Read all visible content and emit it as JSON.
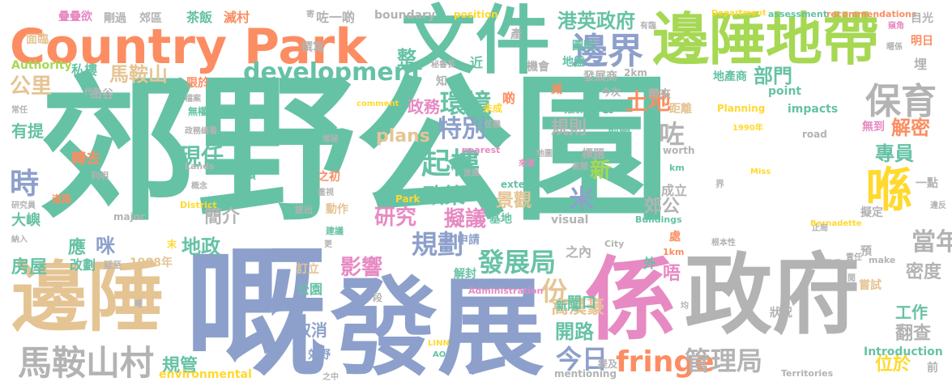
{
  "palette": {
    "teal": "#66c2a5",
    "orange": "#fc8d62",
    "blue": "#8da0cb",
    "pink": "#e78ac3",
    "green": "#a6d854",
    "yellow": "#ffd92f",
    "tan": "#e5c494",
    "gray": "#b3b3b3"
  },
  "words": [
    {
      "text": "郊野公園",
      "color": "teal"
    },
    {
      "text": "嘅",
      "color": "blue"
    },
    {
      "text": "發展",
      "color": "blue"
    },
    {
      "text": "係",
      "color": "pink"
    },
    {
      "text": "政府",
      "color": "gray"
    },
    {
      "text": "文件",
      "color": "teal"
    },
    {
      "text": "Country Park",
      "color": "orange"
    },
    {
      "text": "邊陲地帶",
      "color": "green"
    },
    {
      "text": "邊陲",
      "color": "tan"
    },
    {
      "text": "馬鞍山村",
      "color": "gray"
    },
    {
      "text": "保育",
      "color": "gray"
    },
    {
      "text": "喺",
      "color": "yellow"
    },
    {
      "text": "邊界",
      "color": "blue"
    },
    {
      "text": "development",
      "color": "teal"
    },
    {
      "text": "港英政府",
      "color": "teal"
    },
    {
      "text": "馬鞍山",
      "color": "tan"
    },
    {
      "text": "公里",
      "color": "tan"
    },
    {
      "text": "規劃",
      "color": "blue"
    },
    {
      "text": "起樓",
      "color": "teal"
    },
    {
      "text": "環境",
      "color": "teal"
    },
    {
      "text": "特別",
      "color": "blue"
    },
    {
      "text": "研究",
      "color": "pink"
    },
    {
      "text": "擬議",
      "color": "pink"
    },
    {
      "text": "fringe",
      "color": "orange"
    },
    {
      "text": "管理局",
      "color": "gray"
    },
    {
      "text": "發展局",
      "color": "teal"
    },
    {
      "text": "今日",
      "color": "blue"
    },
    {
      "text": "開路",
      "color": "teal"
    },
    {
      "text": "當年",
      "color": "gray"
    },
    {
      "text": "專員",
      "color": "teal"
    },
    {
      "text": "解密",
      "color": "orange"
    },
    {
      "text": "部門",
      "color": "teal"
    },
    {
      "text": "土地",
      "color": "orange"
    },
    {
      "text": "時",
      "color": "blue"
    },
    {
      "text": "咗",
      "color": "gray"
    },
    {
      "text": "現任",
      "color": "teal"
    },
    {
      "text": "政策",
      "color": "teal"
    },
    {
      "text": "景觀",
      "color": "tan"
    },
    {
      "text": "規則",
      "color": "gray"
    },
    {
      "text": "份",
      "color": "tan"
    },
    {
      "text": "米",
      "color": "blue"
    },
    {
      "text": "新",
      "color": "green"
    },
    {
      "text": "影響",
      "color": "pink"
    },
    {
      "text": "地政",
      "color": "teal"
    },
    {
      "text": "咪",
      "color": "blue"
    },
    {
      "text": "房屋",
      "color": "teal"
    },
    {
      "text": "簡介",
      "color": "gray"
    },
    {
      "text": "plans",
      "color": "tan"
    },
    {
      "text": "政務",
      "color": "pink"
    },
    {
      "text": "整",
      "color": "teal"
    },
    {
      "text": "a",
      "color": "teal"
    },
    {
      "text": "密度",
      "color": "gray"
    },
    {
      "text": "工作",
      "color": "teal"
    },
    {
      "text": "翻查",
      "color": "gray"
    },
    {
      "text": "位於",
      "color": "yellow"
    },
    {
      "text": "規管",
      "color": "teal"
    },
    {
      "text": "取消",
      "color": "blue"
    },
    {
      "text": "窩漢豪",
      "color": "tan"
    },
    {
      "text": "門口",
      "color": "teal"
    },
    {
      "text": "郊公",
      "color": "gray"
    },
    {
      "text": "應",
      "color": "teal"
    },
    {
      "text": "大嶼",
      "color": "teal"
    },
    {
      "text": "改劃",
      "color": "teal"
    },
    {
      "text": "有提",
      "color": "teal"
    },
    {
      "text": "轉去",
      "color": "orange"
    },
    {
      "text": "Authority",
      "color": "green"
    },
    {
      "text": "私樓",
      "color": "teal"
    },
    {
      "text": "面臨",
      "color": "tan"
    },
    {
      "text": "疊疊欲",
      "color": "pink"
    },
    {
      "text": "剛過",
      "color": "gray"
    },
    {
      "text": "郊區",
      "color": "gray"
    },
    {
      "text": "茶飯",
      "color": "teal"
    },
    {
      "text": "滅村",
      "color": "orange"
    },
    {
      "text": "咗一啲",
      "color": "gray"
    },
    {
      "text": "boundary",
      "color": "gray"
    },
    {
      "text": "position",
      "color": "yellow"
    },
    {
      "text": "Department",
      "color": "yellow"
    },
    {
      "text": "assessment",
      "color": "teal"
    },
    {
      "text": "recommendations",
      "color": "orange"
    },
    {
      "text": "目光",
      "color": "gray"
    },
    {
      "text": "明日",
      "color": "orange"
    },
    {
      "text": "地產商",
      "color": "teal"
    },
    {
      "text": "point",
      "color": "teal"
    },
    {
      "text": "發展商",
      "color": "gray"
    },
    {
      "text": "地盤",
      "color": "teal"
    },
    {
      "text": "圖則",
      "color": "teal"
    },
    {
      "text": "近",
      "color": "teal"
    },
    {
      "text": "機會",
      "color": "gray"
    },
    {
      "text": "產",
      "color": "gray"
    },
    {
      "text": "2km",
      "color": "gray"
    },
    {
      "text": "帶來",
      "color": "gray"
    },
    {
      "text": "距離",
      "color": "tan"
    },
    {
      "text": "impacts",
      "color": "teal"
    },
    {
      "text": "Planning",
      "color": "yellow"
    },
    {
      "text": "road",
      "color": "gray"
    },
    {
      "text": "無到",
      "color": "pink"
    },
    {
      "text": "埋",
      "color": "gray"
    },
    {
      "text": "一點",
      "color": "gray"
    },
    {
      "text": "擬定",
      "color": "gray"
    },
    {
      "text": "界",
      "color": "gray"
    },
    {
      "text": "成立",
      "color": "gray"
    },
    {
      "text": "Buildings",
      "color": "teal"
    },
    {
      "text": "visual",
      "color": "gray"
    },
    {
      "text": "extended",
      "color": "teal"
    },
    {
      "text": "Park",
      "color": "yellow"
    },
    {
      "text": "基地",
      "color": "teal"
    },
    {
      "text": "申請",
      "color": "blue"
    },
    {
      "text": "之內",
      "color": "gray"
    },
    {
      "text": "外",
      "color": "teal"
    },
    {
      "text": "唔",
      "color": "pink"
    },
    {
      "text": "處",
      "color": "orange"
    },
    {
      "text": "預",
      "color": "gray"
    },
    {
      "text": "make",
      "color": "gray"
    },
    {
      "text": "嘗試",
      "color": "tan"
    },
    {
      "text": "1km",
      "color": "orange"
    },
    {
      "text": "1988年",
      "color": "tan"
    },
    {
      "text": "延至",
      "color": "gray"
    },
    {
      "text": "公園",
      "color": "teal"
    },
    {
      "text": "訂立",
      "color": "tan"
    },
    {
      "text": "解封",
      "color": "teal"
    },
    {
      "text": "動作",
      "color": "tan"
    },
    {
      "text": "建議",
      "color": "teal"
    },
    {
      "text": "之初",
      "color": "orange"
    },
    {
      "text": "港府",
      "color": "teal"
    },
    {
      "text": "囤積",
      "color": "teal"
    },
    {
      "text": "撥款",
      "color": "teal"
    },
    {
      "text": "今次",
      "color": "gray"
    },
    {
      "text": "前朝",
      "color": "teal"
    },
    {
      "text": "標題",
      "color": "gray"
    },
    {
      "text": "新鴻",
      "color": "teal"
    },
    {
      "text": "狀況",
      "color": "gray"
    },
    {
      "text": "Introduction",
      "color": "teal"
    },
    {
      "text": "mentioning",
      "color": "gray"
    },
    {
      "text": "environmental",
      "color": "yellow"
    },
    {
      "text": "Territories",
      "color": "gray"
    },
    {
      "text": "前",
      "color": "gray"
    },
    {
      "text": "山谷",
      "color": "gray"
    },
    {
      "text": "無權",
      "color": "teal"
    },
    {
      "text": "限於",
      "color": "orange"
    },
    {
      "text": "道路",
      "color": "orange"
    },
    {
      "text": "列明",
      "color": "gray"
    },
    {
      "text": "提出",
      "color": "gray"
    },
    {
      "text": "major",
      "color": "gray"
    },
    {
      "text": "Lands",
      "color": "gray"
    },
    {
      "text": "District",
      "color": "yellow"
    },
    {
      "text": "worth",
      "color": "gray"
    },
    {
      "text": "km",
      "color": "teal"
    },
    {
      "text": "City",
      "color": "gray"
    },
    {
      "text": "Administration",
      "color": "pink"
    },
    {
      "text": "郊野",
      "color": "blue"
    },
    {
      "text": "提及",
      "color": "gray"
    },
    {
      "text": "末",
      "color": "yellow"
    },
    {
      "text": "研究員",
      "color": "gray"
    },
    {
      "text": "常任",
      "color": "gray"
    },
    {
      "text": "秘書長",
      "color": "gray"
    },
    {
      "text": "知",
      "color": "gray"
    },
    {
      "text": "未成",
      "color": "yellow"
    },
    {
      "text": "減",
      "color": "orange"
    },
    {
      "text": "啲",
      "color": "orange"
    },
    {
      "text": "comment",
      "color": "yellow"
    },
    {
      "text": "nearest",
      "color": "pink"
    },
    {
      "text": "1990年",
      "color": "yellow"
    },
    {
      "text": "Miss",
      "color": "yellow"
    },
    {
      "text": "Bernadette",
      "color": "yellow"
    },
    {
      "text": "LINN",
      "color": "yellow"
    },
    {
      "text": "AO",
      "color": "teal"
    },
    {
      "text": "段",
      "color": "gray"
    },
    {
      "text": "更",
      "color": "gray"
    },
    {
      "text": "發現",
      "color": "gray"
    },
    {
      "text": "止局",
      "color": "gray"
    },
    {
      "text": "責任",
      "color": "gray"
    },
    {
      "text": "違反",
      "color": "gray"
    },
    {
      "text": "均",
      "color": "gray"
    },
    {
      "text": "閱",
      "color": "gray"
    },
    {
      "text": "撰寫",
      "color": "gray"
    },
    {
      "text": "代表",
      "color": "gray"
    },
    {
      "text": "來源",
      "color": "pink"
    },
    {
      "text": "放風",
      "color": "gray"
    },
    {
      "text": "常秘",
      "color": "gray"
    },
    {
      "text": "任職",
      "color": "gray"
    },
    {
      "text": "政務總署",
      "color": "gray"
    },
    {
      "text": "檔案",
      "color": "gray"
    },
    {
      "text": "概念",
      "color": "gray"
    },
    {
      "text": "重視",
      "color": "gray"
    },
    {
      "text": "查閱",
      "color": "gray"
    },
    {
      "text": "根本性",
      "color": "gray"
    },
    {
      "text": "地圖",
      "color": "gray"
    },
    {
      "text": "暱",
      "color": "gray"
    },
    {
      "text": "納入",
      "color": "gray"
    },
    {
      "text": "有臨",
      "color": "gray"
    },
    {
      "text": "窺角",
      "color": "pink"
    },
    {
      "text": "暱係",
      "color": "gray"
    },
    {
      "text": "之中",
      "color": "gray"
    },
    {
      "text": "寄",
      "color": "gray"
    }
  ]
}
